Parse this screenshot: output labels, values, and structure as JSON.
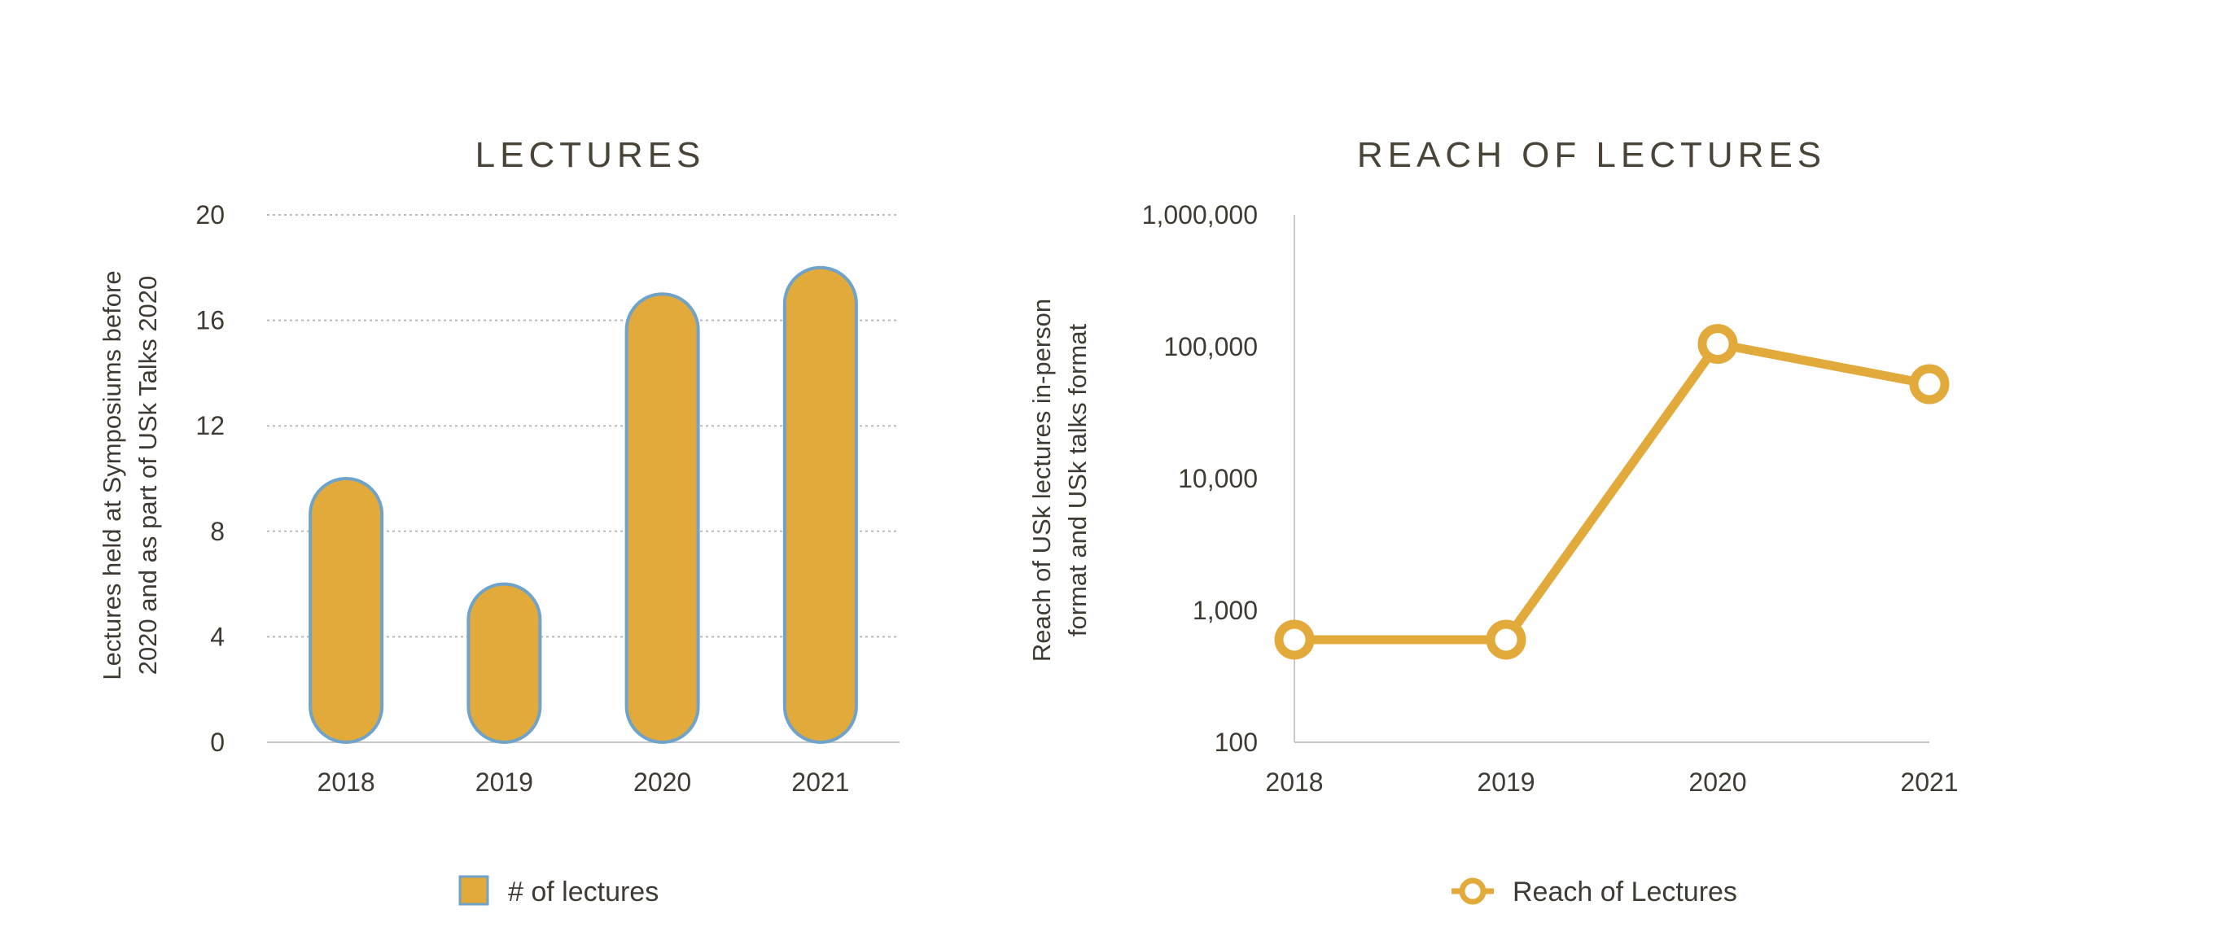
{
  "chart_data": [
    {
      "type": "bar",
      "title": "LECTURES",
      "categories": [
        "2018",
        "2019",
        "2020",
        "2021"
      ],
      "series": [
        {
          "name": "# of lectures",
          "values": [
            10,
            6,
            17,
            18
          ]
        }
      ],
      "ylabel": [
        "Lectures held at Symposiums before",
        "2020 and as part of USk Talks 2020"
      ],
      "ylim": [
        0,
        20
      ],
      "yticks": [
        "0",
        "4",
        "8",
        "12",
        "16",
        "20"
      ],
      "ytick_values": [
        0,
        4,
        8,
        12,
        16,
        20
      ],
      "grid": true,
      "legend": "bottom",
      "colors": {
        "fill": "#E2A93B",
        "stroke": "#6FA3C9"
      }
    },
    {
      "type": "line",
      "title": "REACH OF LECTURES",
      "categories": [
        "2018",
        "2019",
        "2020",
        "2021"
      ],
      "series": [
        {
          "name": "Reach of Lectures",
          "values": [
            600,
            600,
            105000,
            52000
          ]
        }
      ],
      "ylabel": [
        "Reach of USk lectures in-person",
        "format and USk talks format"
      ],
      "yscale": "log",
      "ylim": [
        100,
        1000000
      ],
      "yticks": [
        "100",
        "1,000",
        "10,000",
        "100,000",
        "1,000,000"
      ],
      "ytick_values": [
        100,
        1000,
        10000,
        100000,
        1000000
      ],
      "grid": false,
      "legend": "bottom",
      "colors": {
        "line": "#E2A93B",
        "marker_fill": "#ffffff"
      }
    }
  ]
}
